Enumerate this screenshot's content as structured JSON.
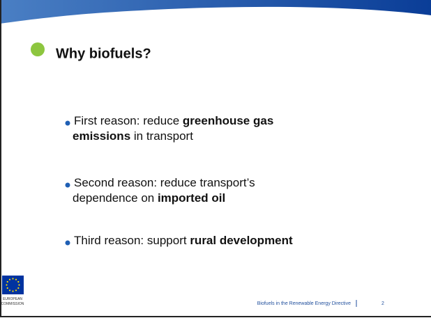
{
  "slide": {
    "title": "Why biofuels?",
    "bullets": [
      {
        "lines": [
          [
            {
              "text": "First reason: reduce ",
              "bold": false
            },
            {
              "text": "greenhouse gas",
              "bold": true
            }
          ],
          [
            {
              "text": "emissions",
              "bold": true
            },
            {
              "text": " in transport",
              "bold": false
            }
          ]
        ]
      },
      {
        "lines": [
          [
            {
              "text": "Second reason: reduce transport’s",
              "bold": false
            }
          ],
          [
            {
              "text": "dependence on ",
              "bold": false
            },
            {
              "text": "imported oil",
              "bold": true
            }
          ]
        ]
      },
      {
        "lines": [
          [
            {
              "text": "Third reason: support ",
              "bold": false
            },
            {
              "text": "rural development",
              "bold": true
            }
          ]
        ]
      }
    ],
    "logo": {
      "line1": "EUROPEAN",
      "line2": "COMMISSION"
    },
    "footer": {
      "text": "Biofuels in the Renewable Energy Directive",
      "page": 2
    }
  }
}
